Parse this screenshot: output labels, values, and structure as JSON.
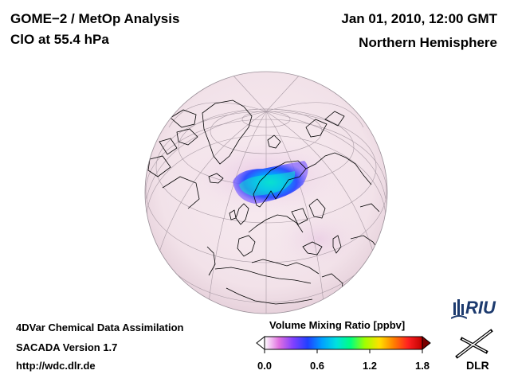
{
  "header": {
    "title_line1": "GOME−2 / MetOp Analysis",
    "title_line2": "ClO at 55.4 hPa",
    "date": "Jan 01, 2010, 12:00 GMT",
    "region": "Northern Hemisphere"
  },
  "footer": {
    "method": "4DVar Chemical Data Assimilation",
    "version": "SACADA Version 1.7",
    "url": "http://wdc.dlr.de"
  },
  "colorbar": {
    "title": "Volume Mixing Ratio [ppbv]",
    "min": 0.0,
    "max": 1.8,
    "ticks": [
      "0.0",
      "0.6",
      "1.2",
      "1.8"
    ],
    "colors": [
      "#ffffff",
      "#e070e0",
      "#8040ff",
      "#2040ff",
      "#00a0ff",
      "#00e0e0",
      "#00ff80",
      "#a0ff00",
      "#ffe000",
      "#ff8000",
      "#ff2020",
      "#c00000"
    ]
  },
  "map": {
    "projection": "orthographic, Northern Hemisphere",
    "background_color": "#f4e6ec",
    "coast_color": "#000000",
    "grid_color": "#9a8f98",
    "features": [
      {
        "label": "ClO enhancement over Scandinavia",
        "peak_ppbv": 1.0
      }
    ]
  },
  "logos": {
    "riu": "RIU",
    "dlr": "DLR"
  }
}
